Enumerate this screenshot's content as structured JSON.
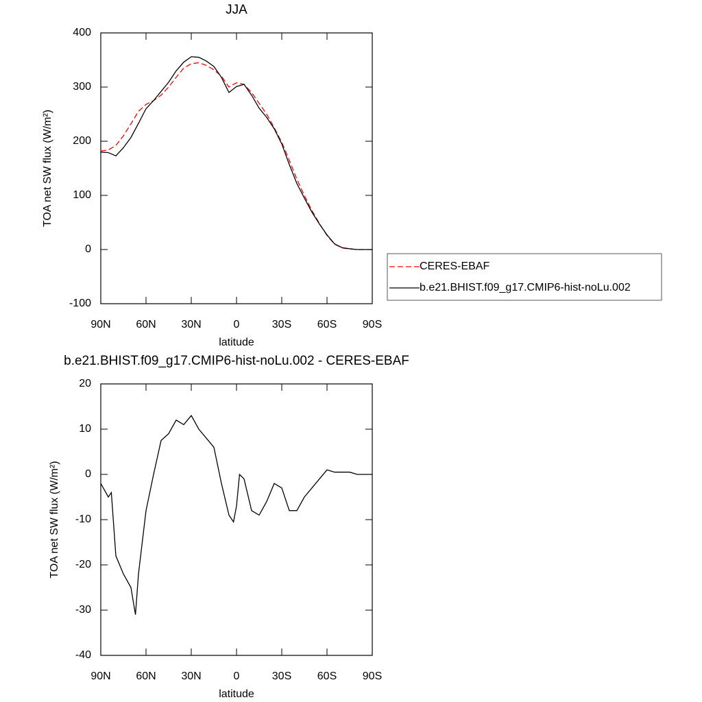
{
  "chart_data": [
    {
      "type": "line",
      "title": "JJA",
      "x_label": "latitude",
      "y_label": "TOA net SW flux (W/m²)",
      "x": [
        90,
        85,
        80,
        75,
        70,
        65,
        60,
        55,
        50,
        45,
        40,
        35,
        30,
        25,
        20,
        15,
        10,
        5,
        0,
        -5,
        -10,
        -15,
        -20,
        -25,
        -30,
        -35,
        -40,
        -45,
        -50,
        -55,
        -60,
        -65,
        -70,
        -75,
        -80,
        -85,
        -90
      ],
      "series": [
        {
          "name": "CERES-EBAF",
          "color": "#ff0000",
          "line_style": "dashed",
          "values": [
            182,
            184,
            192,
            210,
            232,
            255,
            268,
            275,
            285,
            300,
            318,
            335,
            343,
            345,
            340,
            332,
            320,
            300,
            308,
            305,
            290,
            270,
            250,
            225,
            198,
            165,
            130,
            100,
            72,
            48,
            26,
            10,
            3,
            1,
            0,
            0,
            0
          ]
        },
        {
          "name": "b.e21.BHIST.f09_g17.CMIP6-hist-noLu.002",
          "color": "#000000",
          "line_style": "solid",
          "values": [
            180,
            179,
            173,
            188,
            207,
            233,
            260,
            275,
            292,
            309,
            330,
            346,
            356,
            355,
            348,
            338,
            318,
            290,
            301,
            305,
            285,
            261,
            244,
            223,
            195,
            157,
            122,
            95,
            69,
            47,
            27,
            10.5,
            3.5,
            1.5,
            0,
            0,
            0
          ]
        }
      ],
      "xlim": [
        90,
        -90
      ],
      "xticks": [
        {
          "value": 90,
          "label": "90N"
        },
        {
          "value": 60,
          "label": "60N"
        },
        {
          "value": 30,
          "label": "30N"
        },
        0,
        {
          "value": -30,
          "label": "30S"
        },
        {
          "value": -60,
          "label": "60S"
        },
        {
          "value": -90,
          "label": "90S"
        }
      ],
      "ylim": [
        -100,
        400
      ],
      "yticks": [
        -100,
        0,
        100,
        200,
        300,
        400
      ],
      "legend": "right"
    },
    {
      "type": "line",
      "title": "b.e21.BHIST.f09_g17.CMIP6-hist-noLu.002 - CERES-EBAF",
      "x_label": "latitude",
      "y_label": "TOA net SW flux (W/m²)",
      "x": [
        90,
        85,
        83,
        80,
        75,
        70,
        67,
        65,
        60,
        55,
        50,
        45,
        40,
        35,
        30,
        25,
        20,
        15,
        10,
        5,
        2,
        0,
        -2,
        -5,
        -10,
        -15,
        -20,
        -25,
        -30,
        -35,
        -40,
        -45,
        -50,
        -55,
        -60,
        -65,
        -70,
        -75,
        -80,
        -85,
        -90
      ],
      "series": [
        {
          "name": "b.e21.BHIST.f09_g17.CMIP6-hist-noLu.002 - CERES-EBAF",
          "color": "#000000",
          "line_style": "solid",
          "values": [
            -2,
            -5,
            -4,
            -18,
            -22,
            -25,
            -31,
            -22,
            -8,
            0,
            7.5,
            9,
            12,
            11,
            13,
            10,
            8,
            6,
            -2,
            -9,
            -10.5,
            -7,
            0,
            -1,
            -8,
            -9,
            -6,
            -2,
            -3,
            -8,
            -8,
            -5,
            -3,
            -1,
            1,
            0.5,
            0.5,
            0.5,
            0,
            0,
            0
          ]
        }
      ],
      "xlim": [
        90,
        -90
      ],
      "xticks": [
        {
          "value": 90,
          "label": "90N"
        },
        {
          "value": 60,
          "label": "60N"
        },
        {
          "value": 30,
          "label": "30N"
        },
        0,
        {
          "value": -30,
          "label": "30S"
        },
        {
          "value": -60,
          "label": "60S"
        },
        {
          "value": -90,
          "label": "90S"
        }
      ],
      "ylim": [
        -40,
        20
      ],
      "yticks": [
        -40,
        -30,
        -20,
        -10,
        0,
        10,
        20
      ]
    }
  ]
}
